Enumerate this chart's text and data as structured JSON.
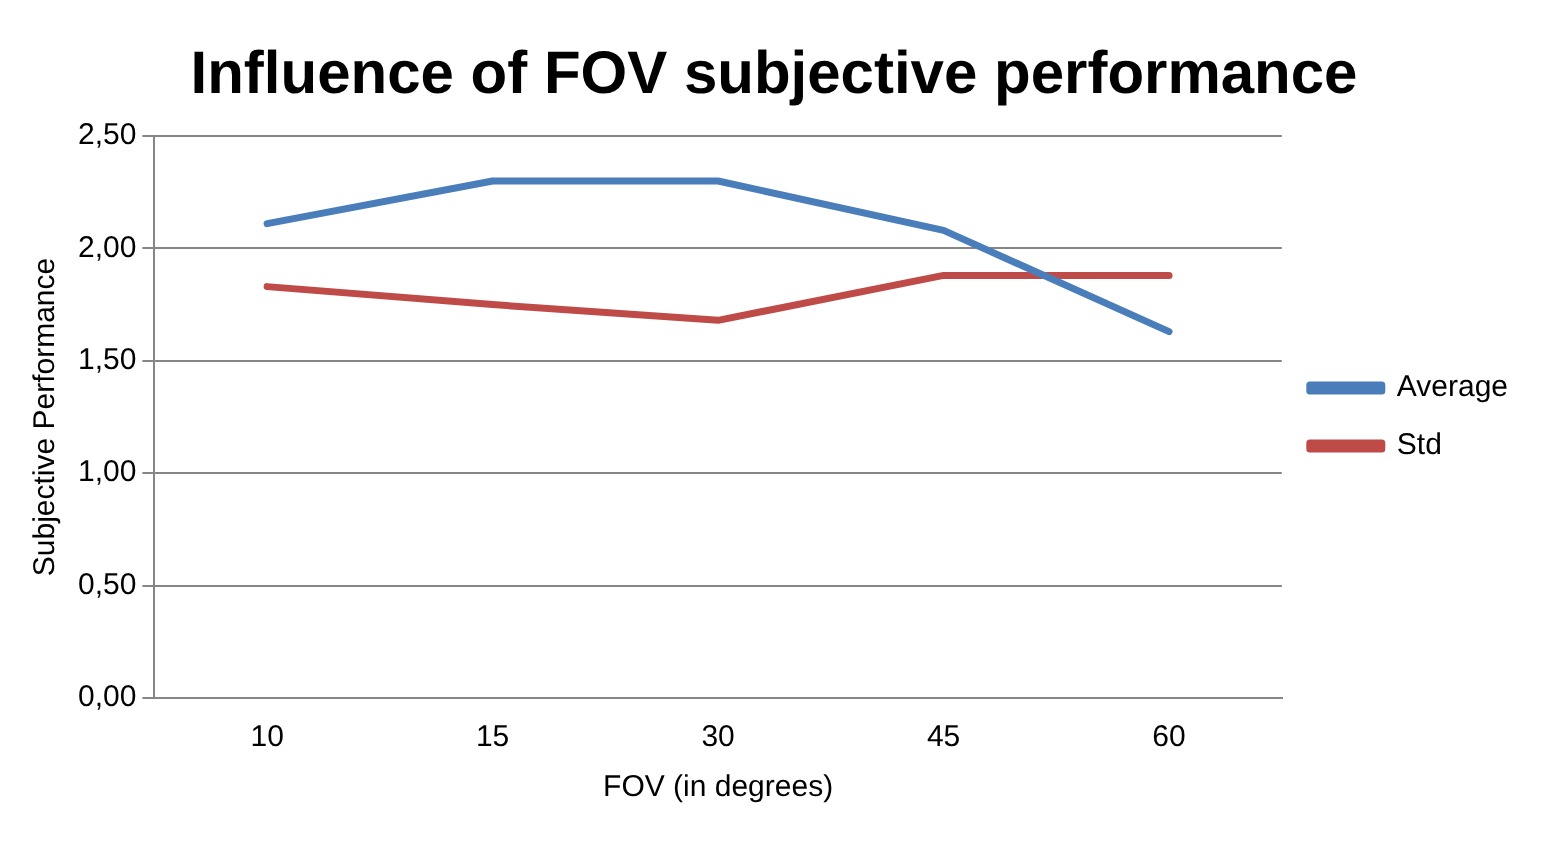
{
  "chart_data": {
    "type": "line",
    "title": "Influence of FOV subjective performance",
    "xlabel": "FOV (in degrees)",
    "ylabel": "Subjective Performance",
    "categories": [
      "10",
      "15",
      "30",
      "45",
      "60"
    ],
    "series": [
      {
        "name": "Average",
        "color": "#4a7ebb",
        "values": [
          2.11,
          2.3,
          2.3,
          2.08,
          1.63
        ]
      },
      {
        "name": "Std",
        "color": "#be4b48",
        "values": [
          1.83,
          1.75,
          1.68,
          1.88,
          1.88
        ]
      }
    ],
    "ylim": [
      0,
      2.5
    ],
    "yticks": [
      {
        "value": 0,
        "label": "0,00"
      },
      {
        "value": 0.5,
        "label": "0,50"
      },
      {
        "value": 1,
        "label": "1,00"
      },
      {
        "value": 1.5,
        "label": "1,50"
      },
      {
        "value": 2,
        "label": "2,00"
      },
      {
        "value": 2.5,
        "label": "2,50"
      }
    ],
    "grid": "y",
    "legend": "right",
    "marker": "none",
    "line_style": "solid"
  }
}
